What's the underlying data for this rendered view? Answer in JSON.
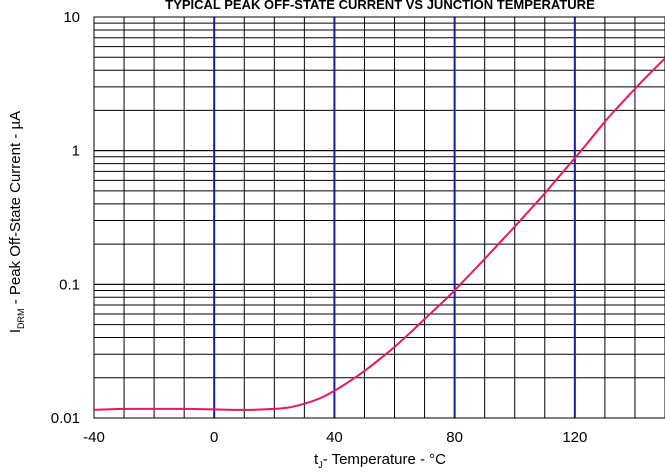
{
  "chart_data": {
    "type": "line",
    "title": "TYPICAL PEAK OFF-STATE CURRENT VS JUNCTION TEMPERATURE",
    "xlabel": {
      "main": "t",
      "sub": "J",
      "rest": "- Temperature - °C"
    },
    "ylabel": {
      "main": "I",
      "sub": "DRM",
      "rest": " - Peak Off-State Current - µA"
    },
    "xlim": [
      -40,
      150
    ],
    "ylim": [
      0.01,
      10
    ],
    "y_scale": "log",
    "x_ticks": [
      -40,
      0,
      40,
      80,
      120
    ],
    "x_tick_labels": [
      "-40",
      "0",
      "40",
      "80",
      "120"
    ],
    "y_ticks": [
      0.01,
      0.1,
      1,
      10
    ],
    "y_tick_labels": [
      "0.01",
      "0.1",
      "1",
      "10"
    ],
    "grid": true,
    "highlight_x": [
      0,
      40,
      80,
      120
    ],
    "colors": {
      "curve": "#e8185a",
      "highlight": "#1a1a9a",
      "grid": "#000000"
    },
    "series": [
      {
        "x": [
          -40,
          -30,
          -20,
          -10,
          0,
          10,
          20,
          25,
          30,
          35,
          40,
          45,
          50,
          55,
          60,
          65,
          70,
          75,
          80,
          85,
          90,
          95,
          100,
          105,
          110,
          115,
          120,
          125,
          130,
          135,
          140,
          145,
          150
        ],
        "y": [
          0.0115,
          0.0117,
          0.0117,
          0.0117,
          0.0116,
          0.0115,
          0.0117,
          0.012,
          0.0128,
          0.014,
          0.016,
          0.0188,
          0.0225,
          0.0275,
          0.034,
          0.043,
          0.055,
          0.07,
          0.09,
          0.118,
          0.155,
          0.205,
          0.27,
          0.36,
          0.48,
          0.65,
          0.88,
          1.2,
          1.65,
          2.2,
          2.9,
          3.8,
          4.9
        ]
      }
    ]
  }
}
